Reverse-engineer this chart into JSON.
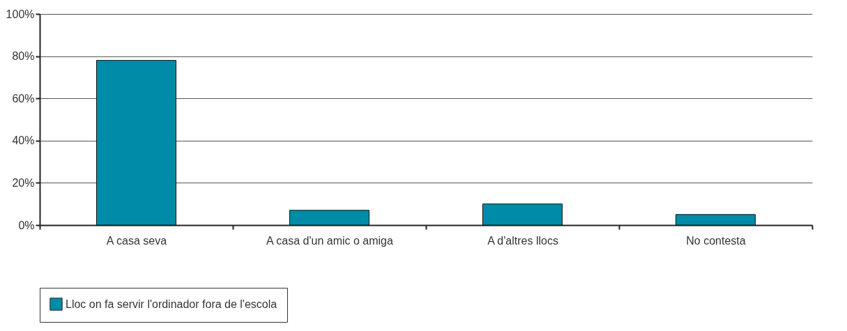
{
  "chart_data": {
    "type": "bar",
    "categories": [
      "A casa seva",
      "A casa d'un amic o amiga",
      "A d'altres llocs",
      "No contesta"
    ],
    "series": [
      {
        "name": "Lloc on fa servir l'ordinador fora de l'escola",
        "color": "#008ba8",
        "values": [
          78,
          7,
          10,
          5
        ]
      }
    ],
    "ylim": [
      0,
      100
    ],
    "yticks": [
      {
        "value": 0,
        "label": "0%"
      },
      {
        "value": 20,
        "label": "20%"
      },
      {
        "value": 40,
        "label": "40%"
      },
      {
        "value": 60,
        "label": "60%"
      },
      {
        "value": 80,
        "label": "80%"
      },
      {
        "value": 100,
        "label": "100%"
      }
    ],
    "grid": "y",
    "legend": "bottom"
  }
}
